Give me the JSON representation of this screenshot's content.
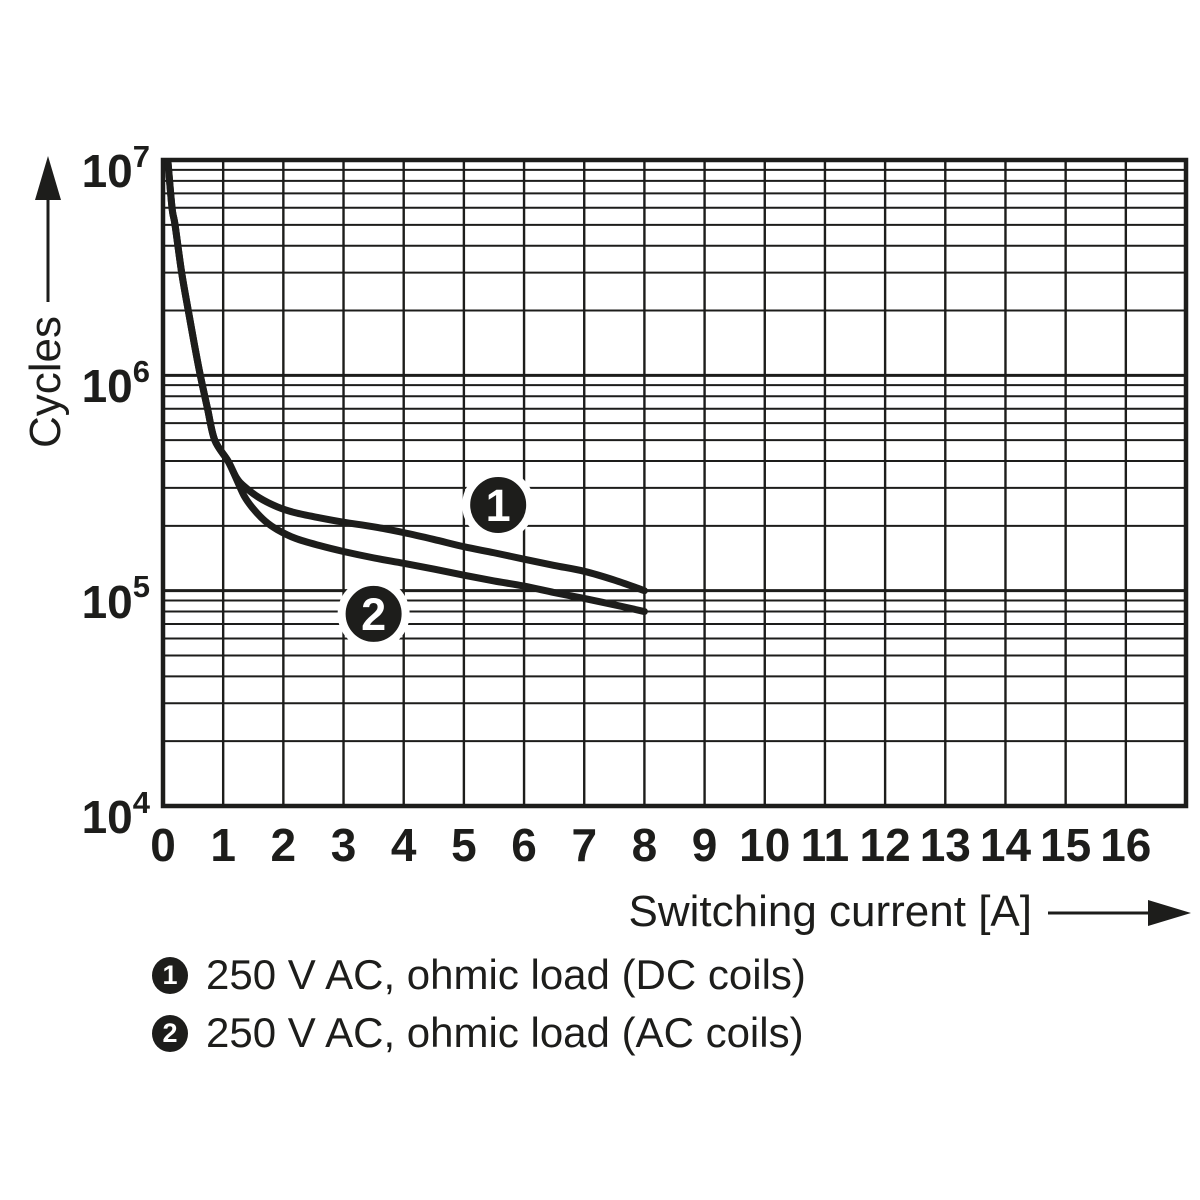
{
  "colors": {
    "ink": "#1d1d1b",
    "background": "#ffffff",
    "marker_fill": "#1d1d1b",
    "marker_text": "#ffffff",
    "marker_halo": "#ffffff"
  },
  "chart_data": {
    "type": "line",
    "title": "",
    "xlabel": "Switching current [A]",
    "ylabel": "Cycles",
    "x_scale": "linear",
    "y_scale": "log",
    "x_range": [
      0,
      17
    ],
    "y_range": [
      10000,
      10000000
    ],
    "grid": "full log grid, minor decade lines 2-9 horizontal, integer vertical lines",
    "legend_position": "below",
    "x_ticks": [
      "0",
      "1",
      "2",
      "3",
      "4",
      "5",
      "6",
      "7",
      "8",
      "9",
      "10",
      "11",
      "12",
      "13",
      "14",
      "15",
      "16"
    ],
    "y_ticks": [
      {
        "mantissa": "10",
        "exponent": "7",
        "value": 10000000
      },
      {
        "mantissa": "10",
        "exponent": "6",
        "value": 1000000
      },
      {
        "mantissa": "10",
        "exponent": "5",
        "value": 100000
      },
      {
        "mantissa": "10",
        "exponent": "4",
        "value": 10000
      }
    ],
    "series": [
      {
        "name": "1",
        "label": "250 V AC, ohmic load (DC coils)",
        "points": [
          [
            0.08,
            10000000
          ],
          [
            0.15,
            6000000
          ],
          [
            0.2,
            5000000
          ],
          [
            0.31,
            3000000
          ],
          [
            0.42,
            2000000
          ],
          [
            0.52,
            1400000
          ],
          [
            0.62,
            1000000
          ],
          [
            0.74,
            700000
          ],
          [
            0.86,
            500000
          ],
          [
            1.08,
            400000
          ],
          [
            1.22,
            335000
          ],
          [
            1.35,
            305000
          ],
          [
            1.6,
            270000
          ],
          [
            1.9,
            245000
          ],
          [
            2.2,
            230000
          ],
          [
            2.6,
            218000
          ],
          [
            3.0,
            208000
          ],
          [
            3.5,
            198000
          ],
          [
            4.0,
            186000
          ],
          [
            4.5,
            173000
          ],
          [
            5.0,
            160000
          ],
          [
            5.5,
            150000
          ],
          [
            6.0,
            140000
          ],
          [
            6.5,
            131000
          ],
          [
            7.0,
            123000
          ],
          [
            7.5,
            112000
          ],
          [
            8.0,
            100000
          ]
        ]
      },
      {
        "name": "2",
        "label": "250 V AC, ohmic load (AC coils)",
        "points": [
          [
            0.08,
            10000000
          ],
          [
            0.15,
            6000000
          ],
          [
            0.2,
            5000000
          ],
          [
            0.31,
            3000000
          ],
          [
            0.42,
            2000000
          ],
          [
            0.52,
            1400000
          ],
          [
            0.62,
            1000000
          ],
          [
            0.74,
            700000
          ],
          [
            0.86,
            500000
          ],
          [
            1.08,
            400000
          ],
          [
            1.22,
            330000
          ],
          [
            1.35,
            275000
          ],
          [
            1.5,
            240000
          ],
          [
            1.7,
            210000
          ],
          [
            1.9,
            192000
          ],
          [
            2.2,
            175000
          ],
          [
            2.6,
            162000
          ],
          [
            3.0,
            152000
          ],
          [
            3.5,
            142000
          ],
          [
            4.0,
            134000
          ],
          [
            4.5,
            126000
          ],
          [
            5.0,
            118000
          ],
          [
            5.5,
            111000
          ],
          [
            6.0,
            105000
          ],
          [
            6.5,
            98000
          ],
          [
            7.0,
            92000
          ],
          [
            7.5,
            86000
          ],
          [
            8.0,
            80000
          ]
        ]
      }
    ],
    "curve_markers": [
      {
        "label": "1",
        "x": 5.57,
        "y": 250000
      },
      {
        "label": "2",
        "x": 3.5,
        "y": 78000
      }
    ]
  },
  "legend": {
    "items": [
      {
        "symbol": "1",
        "text": "250 V AC, ohmic load (DC coils)"
      },
      {
        "symbol": "2",
        "text": "250 V AC, ohmic load (AC coils)"
      }
    ]
  }
}
